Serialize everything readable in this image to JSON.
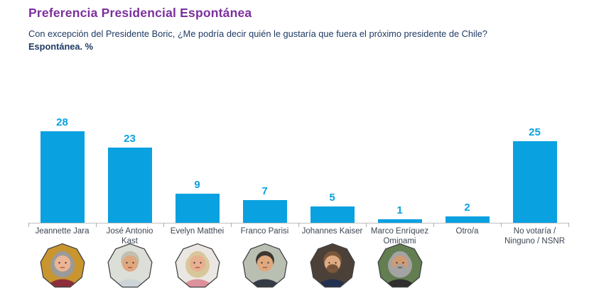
{
  "header": {
    "title": "Preferencia Presidencial Espontánea",
    "subtitle": "Con excepción del Presidente Boric, ¿Me podría decir quién le gustaría que fuera el próximo presidente de Chile?",
    "subtitle_bold": "Espontánea. %"
  },
  "colors": {
    "title": "#7b2f9e",
    "subtitle": "#1f3a63",
    "bar": "#0aa1e0",
    "value_label": "#0aa1e0",
    "category_label": "#3d4654",
    "axis_line": "#c2c2c2"
  },
  "chart_data": {
    "type": "bar",
    "title": "Preferencia Presidencial Espontánea",
    "subtitle": "Con excepción del Presidente Boric, ¿Me podría decir quién le gustaría que fuera el próximo presidente de Chile? Espontánea. %",
    "categories": [
      "Jeannette Jara",
      "José Antonio Kast",
      "Evelyn Matthei",
      "Franco Parisi",
      "Johannes Kaiser",
      "Marco Enríquez Ominami",
      "Otro/a",
      "No votaría / Ninguno / NSNR"
    ],
    "values": [
      28,
      23,
      9,
      7,
      5,
      1,
      2,
      25
    ],
    "unit": "%",
    "xlabel": "",
    "ylabel": "",
    "ylim": [
      0,
      30
    ],
    "grid": false,
    "legend": false,
    "value_labels_shown": true,
    "bar_color": "#0aa1e0"
  },
  "avatars": [
    {
      "name": "jeannette-jara",
      "bg": "#c9952f",
      "hair": "#9a9a9a",
      "skin": "#eab695",
      "shirt": "#8d2f3a",
      "hair_style": "long",
      "beard": false
    },
    {
      "name": "jose-antonio-kast",
      "bg": "#dcded8",
      "hair": "#c2bfb2",
      "skin": "#dfa87e",
      "shirt": "#ccd4d7",
      "hair_style": "short",
      "beard": false
    },
    {
      "name": "evelyn-matthei",
      "bg": "#eae6e2",
      "hair": "#d9c79c",
      "skin": "#e7b091",
      "shirt": "#dd929b",
      "hair_style": "long",
      "beard": false
    },
    {
      "name": "franco-parisi",
      "bg": "#b9c0b2",
      "hair": "#3c3631",
      "skin": "#dfa87e",
      "shirt": "#343b46",
      "hair_style": "short",
      "beard": false
    },
    {
      "name": "johannes-kaiser",
      "bg": "#4c4139",
      "hair": "#7a563a",
      "skin": "#e0aa82",
      "shirt": "#233150",
      "hair_style": "short",
      "beard": true
    },
    {
      "name": "marco-enriquez-ominami",
      "bg": "#637e51",
      "hair": "#a3a3a3",
      "skin": "#cf9b74",
      "shirt": "#2f2f2f",
      "hair_style": "long",
      "beard": true
    }
  ]
}
